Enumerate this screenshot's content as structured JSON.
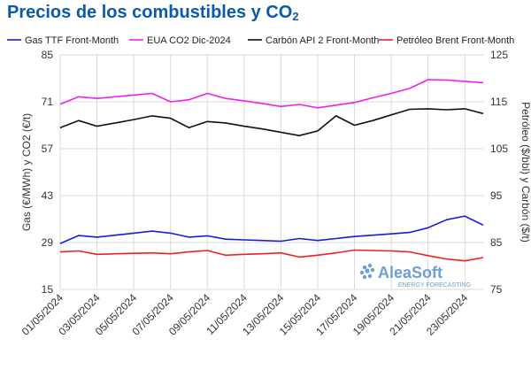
{
  "header": {
    "title_main": "Precios de los combustibles y CO",
    "title_sub": "2"
  },
  "logo": {
    "brand": "AleaSoft",
    "tagline": "ENERGY FORECASTING"
  },
  "colors": {
    "gas": "#1a1adc",
    "eua": "#ee22ee",
    "coal": "#111111",
    "brent": "#ee2222",
    "grid": "#d9d9d9",
    "title": "#0a5aa8",
    "logo": "#6f9fd0"
  },
  "chart_data": {
    "type": "line",
    "title": "Precios de los combustibles y CO2",
    "x": [
      "01/05/2024",
      "02/05/2024",
      "03/05/2024",
      "04/05/2024",
      "05/05/2024",
      "06/05/2024",
      "07/05/2024",
      "08/05/2024",
      "09/05/2024",
      "10/05/2024",
      "11/05/2024",
      "12/05/2024",
      "13/05/2024",
      "14/05/2024",
      "15/05/2024",
      "16/05/2024",
      "17/05/2024",
      "18/05/2024",
      "19/05/2024",
      "20/05/2024",
      "21/05/2024",
      "22/05/2024",
      "23/05/2024",
      "24/05/2024"
    ],
    "x_tick_labels": [
      "01/05/2024",
      "03/05/2024",
      "05/05/2024",
      "07/05/2024",
      "09/05/2024",
      "11/05/2024",
      "13/05/2024",
      "15/05/2024",
      "17/05/2024",
      "19/05/2024",
      "21/05/2024",
      "23/05/2024"
    ],
    "y_left": {
      "label": "Gas (€/MWh) y CO2 (€/t)",
      "lim": [
        15,
        85
      ],
      "ticks": [
        15,
        29,
        43,
        57,
        71,
        85
      ]
    },
    "y_right": {
      "label": "Petróleo ($/bbl) y Carbón ($/t)",
      "lim": [
        75,
        125
      ],
      "ticks": [
        75,
        85,
        95,
        105,
        115,
        125
      ]
    },
    "grid": true,
    "legend_position": "top",
    "series": [
      {
        "name": "Gas TTF Front-Month",
        "axis": "left",
        "color": "#1a1adc",
        "values": [
          28.7,
          31.1,
          30.6,
          31.2,
          31.8,
          32.4,
          31.8,
          30.6,
          31.0,
          30.0,
          29.8,
          29.6,
          29.4,
          30.2,
          29.6,
          30.2,
          30.8,
          31.2,
          31.6,
          32.0,
          33.4,
          35.8,
          36.9,
          34.2
        ]
      },
      {
        "name": "EUA CO2 Dic-2024",
        "axis": "left",
        "color": "#ee22ee",
        "values": [
          70.3,
          72.5,
          72.0,
          72.5,
          73.0,
          73.5,
          71.0,
          71.6,
          73.5,
          72.0,
          71.3,
          70.5,
          69.6,
          70.2,
          69.2,
          70.0,
          70.8,
          72.2,
          73.5,
          75.0,
          77.6,
          77.5,
          77.1,
          76.7
        ]
      },
      {
        "name": "Carbón API 2 Front-Month",
        "axis": "right",
        "color": "#111111",
        "values": [
          109.5,
          111.0,
          109.8,
          110.5,
          111.2,
          112.0,
          111.5,
          109.5,
          110.8,
          110.5,
          109.8,
          109.2,
          108.5,
          107.8,
          108.8,
          112.0,
          110.0,
          111.0,
          112.2,
          113.4,
          113.5,
          113.3,
          113.5,
          112.5
        ]
      },
      {
        "name": "Petróleo Brent Front-Month",
        "axis": "right",
        "color": "#ee2222",
        "values": [
          83.0,
          83.2,
          82.5,
          82.6,
          82.7,
          82.8,
          82.6,
          83.0,
          83.3,
          82.3,
          82.5,
          82.6,
          82.8,
          81.9,
          82.3,
          82.8,
          83.4,
          83.3,
          83.2,
          83.0,
          82.2,
          81.5,
          81.1,
          81.8
        ]
      }
    ]
  }
}
